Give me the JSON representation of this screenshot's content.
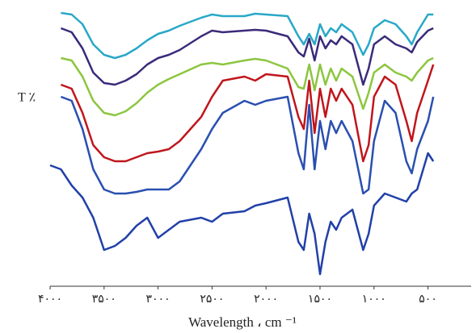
{
  "chart_data": {
    "type": "line",
    "ylabel": "T ٪",
    "xlabel": "Wavelength ، cm ⁻¹",
    "x": [
      4000,
      3900,
      3800,
      3700,
      3600,
      3500,
      3400,
      3300,
      3200,
      3100,
      3000,
      2900,
      2800,
      2600,
      2500,
      2400,
      2200,
      2100,
      2000,
      1800,
      1700,
      1650,
      1600,
      1550,
      1500,
      1450,
      1400,
      1350,
      1300,
      1200,
      1100,
      1050,
      1000,
      900,
      800,
      700,
      650,
      600,
      500,
      450
    ],
    "xlim": [
      4000,
      100
    ],
    "xticks": [
      {
        "value": 4000,
        "label": "۴۰۰۰"
      },
      {
        "value": 3500,
        "label": "۳۵۰۰"
      },
      {
        "value": 3000,
        "label": "۳۰۰۰"
      },
      {
        "value": 2500,
        "label": "۲۵۰۰"
      },
      {
        "value": 2000,
        "label": "۲۰۰۰"
      },
      {
        "value": 1500,
        "label": "۱۵۰۰"
      },
      {
        "value": 1000,
        "label": "۱۰۰۰"
      },
      {
        "value": 500,
        "label": "۵۰۰"
      }
    ],
    "ylim": [
      0,
      350
    ],
    "series": [
      {
        "color": "#29a8c8",
        "values": [
          null,
          339,
          337,
          325,
          300,
          287,
          283,
          287,
          295,
          305,
          313,
          317,
          323,
          333,
          337,
          335,
          335,
          338,
          337,
          335,
          310,
          300,
          313,
          300,
          325,
          310,
          320,
          315,
          325,
          315,
          287,
          300,
          320,
          330,
          325,
          310,
          300,
          315,
          337,
          337
        ]
      },
      {
        "color": "#3b2a7a",
        "values": [
          null,
          320,
          315,
          295,
          265,
          252,
          250,
          255,
          263,
          275,
          283,
          287,
          293,
          310,
          317,
          315,
          317,
          318,
          317,
          310,
          290,
          285,
          307,
          280,
          310,
          295,
          305,
          300,
          310,
          300,
          250,
          270,
          300,
          310,
          300,
          295,
          290,
          303,
          317,
          320
        ]
      },
      {
        "color": "#8cc63f",
        "values": [
          null,
          283,
          280,
          260,
          230,
          215,
          212,
          217,
          227,
          240,
          250,
          257,
          263,
          275,
          277,
          275,
          280,
          282,
          280,
          270,
          247,
          245,
          275,
          243,
          275,
          250,
          270,
          255,
          270,
          260,
          220,
          240,
          265,
          275,
          265,
          260,
          255,
          265,
          280,
          283
        ]
      },
      {
        "color": "#c0161c",
        "values": [
          null,
          250,
          245,
          215,
          175,
          160,
          155,
          155,
          160,
          165,
          167,
          170,
          180,
          210,
          235,
          255,
          260,
          255,
          263,
          260,
          210,
          195,
          255,
          190,
          245,
          210,
          245,
          230,
          245,
          225,
          155,
          175,
          235,
          260,
          250,
          205,
          180,
          215,
          255,
          275
        ]
      },
      {
        "color": "#2a4fb0",
        "values": [
          null,
          235,
          230,
          195,
          145,
          120,
          115,
          115,
          117,
          120,
          120,
          120,
          130,
          170,
          195,
          215,
          230,
          225,
          230,
          235,
          165,
          145,
          225,
          145,
          205,
          170,
          205,
          190,
          205,
          180,
          115,
          120,
          180,
          230,
          215,
          155,
          140,
          170,
          205,
          235
        ]
      },
      {
        "color": "#2140a8",
        "values": [
          150,
          145,
          125,
          110,
          85,
          45,
          50,
          60,
          75,
          85,
          60,
          70,
          80,
          85,
          80,
          90,
          93,
          100,
          103,
          110,
          55,
          45,
          90,
          65,
          15,
          55,
          80,
          70,
          85,
          95,
          45,
          65,
          100,
          115,
          110,
          105,
          115,
          120,
          165,
          155
        ]
      }
    ]
  }
}
